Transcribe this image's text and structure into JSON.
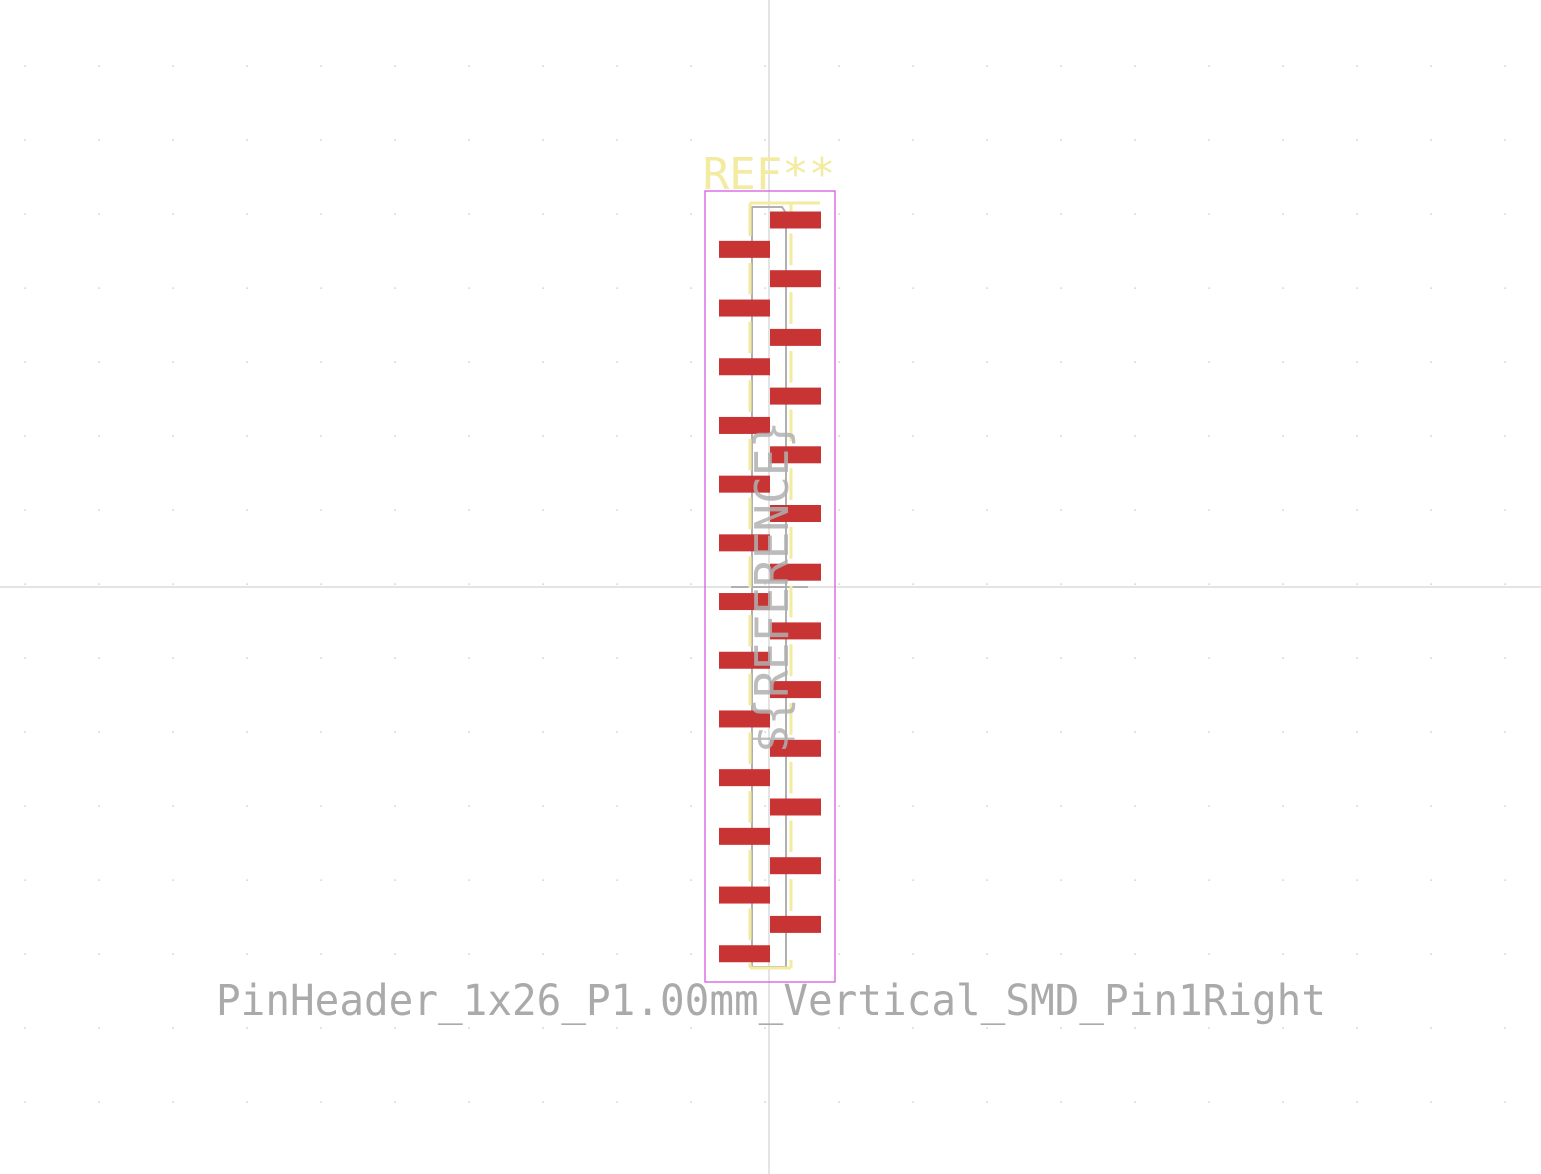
{
  "footprint": {
    "reference": "REF**",
    "value": "PinHeader_1x26_P1.00mm_Vertical_SMD_Pin1Right",
    "fab_reference": "${REFERENCE}",
    "pin_count": 26,
    "pitch_mm": 1.0,
    "pin1_side": "right"
  },
  "colors": {
    "background": "#ffffff",
    "grid_dot": "#b4b4b4",
    "axis": "#c8c8c8",
    "pad": "#c83434",
    "courtyard": "#d24ee0",
    "silkscreen": "#f2eba0",
    "fab": "#b0b0b0",
    "value_text": "#aaaaaa"
  }
}
